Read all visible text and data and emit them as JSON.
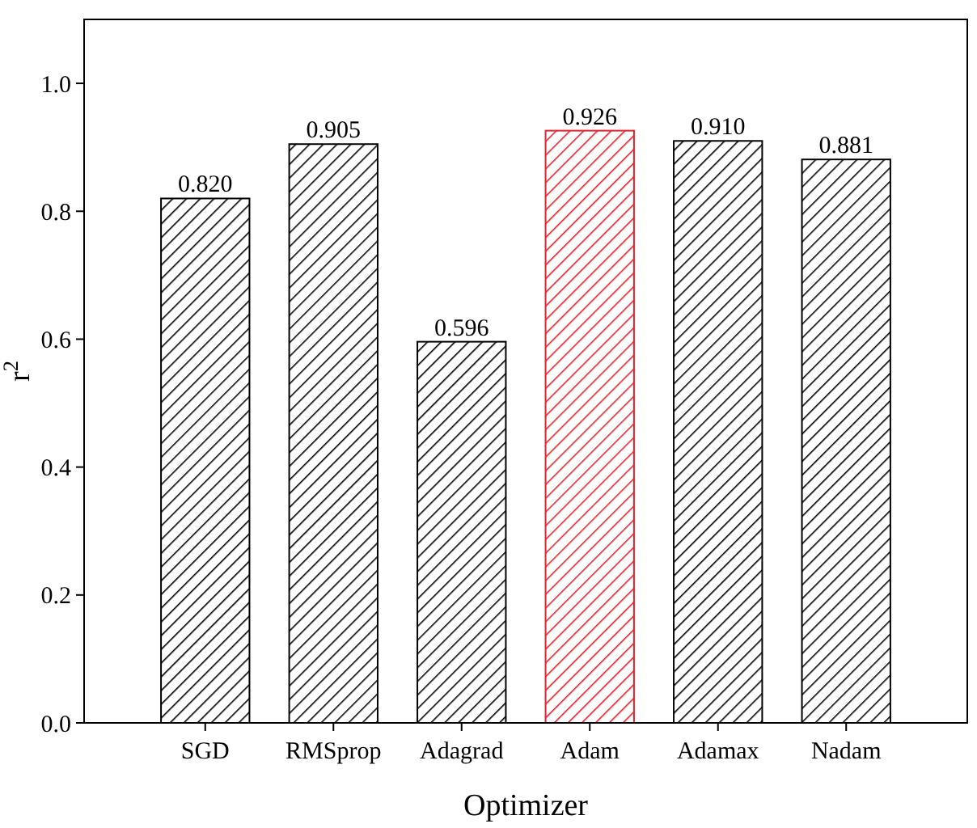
{
  "chart_data": {
    "type": "bar",
    "xlabel": "Optimizer",
    "ylabel": "r$^{2}$",
    "categories": [
      "SGD",
      "RMSprop",
      "Adagrad",
      "Adam",
      "Adamax",
      "Nadam"
    ],
    "values": [
      0.82,
      0.905,
      0.596,
      0.926,
      0.91,
      0.881
    ],
    "value_labels": [
      "0.820",
      "0.905",
      "0.596",
      "0.926",
      "0.910",
      "0.881"
    ],
    "colors": [
      "#000000",
      "#000000",
      "#000000",
      "#e8202a",
      "#000000",
      "#000000"
    ],
    "ylim": [
      0,
      1.1
    ],
    "yticks": [
      {
        "value": 0,
        "label": "0.0"
      },
      {
        "value": 0.2,
        "label": "0.2"
      },
      {
        "value": 0.4,
        "label": "0.4"
      },
      {
        "value": 0.6,
        "label": "0.6"
      },
      {
        "value": 0.8,
        "label": "0.8"
      },
      {
        "value": 1,
        "label": "1.0"
      }
    ],
    "grid": false
  }
}
